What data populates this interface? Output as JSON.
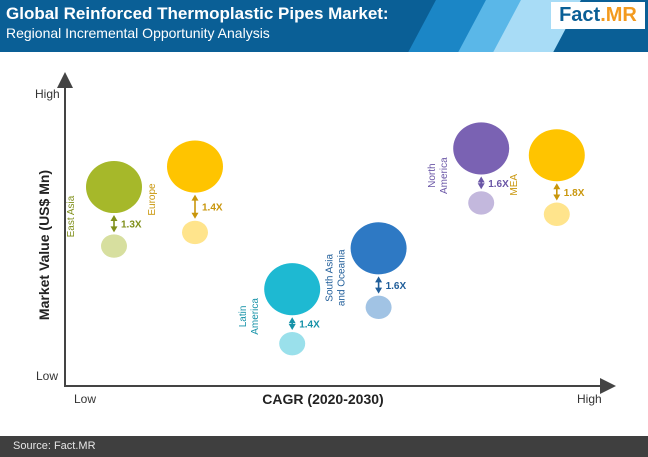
{
  "header": {
    "title": "Global Reinforced Thermoplastic Pipes Market:",
    "subtitle": "Regional Incremental Opportunity Analysis",
    "logo_left": "Fact",
    "logo_right": ".MR"
  },
  "footer": {
    "source": "Source: Fact.MR"
  },
  "colors": {
    "header_bg": "#0a5f96",
    "logo_orange": "#f39a1e",
    "footer_bg": "#3f3f3f"
  },
  "chart_data": {
    "type": "scatter",
    "title": "",
    "xlabel": "CAGR (2020-2030)",
    "ylabel": "Market Value (US$ Mn)",
    "x_ticks": [
      "Low",
      "High"
    ],
    "y_ticks": [
      "Low",
      "High"
    ],
    "regions": [
      {
        "name": "East Asia",
        "multiplier": "1.3X",
        "color": "#a6b82a",
        "label_color": "#7f8f1a",
        "x": 0.1,
        "y_current": 0.48,
        "y_future": 0.74
      },
      {
        "name": "Europe",
        "multiplier": "1.4X",
        "color": "#ffc400",
        "label_color": "#c9960b",
        "x": 0.25,
        "y_current": 0.54,
        "y_future": 0.83
      },
      {
        "name": "Latin America",
        "multiplier": "1.4X",
        "color": "#1eb9d2",
        "label_color": "#1592a8",
        "x": 0.43,
        "y_current": 0.05,
        "y_future": 0.29
      },
      {
        "name": "South Asia and Oceania",
        "multiplier": "1.6X",
        "color": "#2e79c4",
        "label_color": "#1f5d99",
        "x": 0.59,
        "y_current": 0.21,
        "y_future": 0.47
      },
      {
        "name": "North America",
        "multiplier": "1.6X",
        "color": "#7a62b3",
        "label_color": "#6a56a6",
        "x": 0.78,
        "y_current": 0.67,
        "y_future": 0.91
      },
      {
        "name": "MEA",
        "multiplier": "1.8X",
        "color": "#ffc400",
        "label_color": "#c9960b",
        "x": 0.92,
        "y_current": 0.62,
        "y_future": 0.88
      }
    ]
  }
}
